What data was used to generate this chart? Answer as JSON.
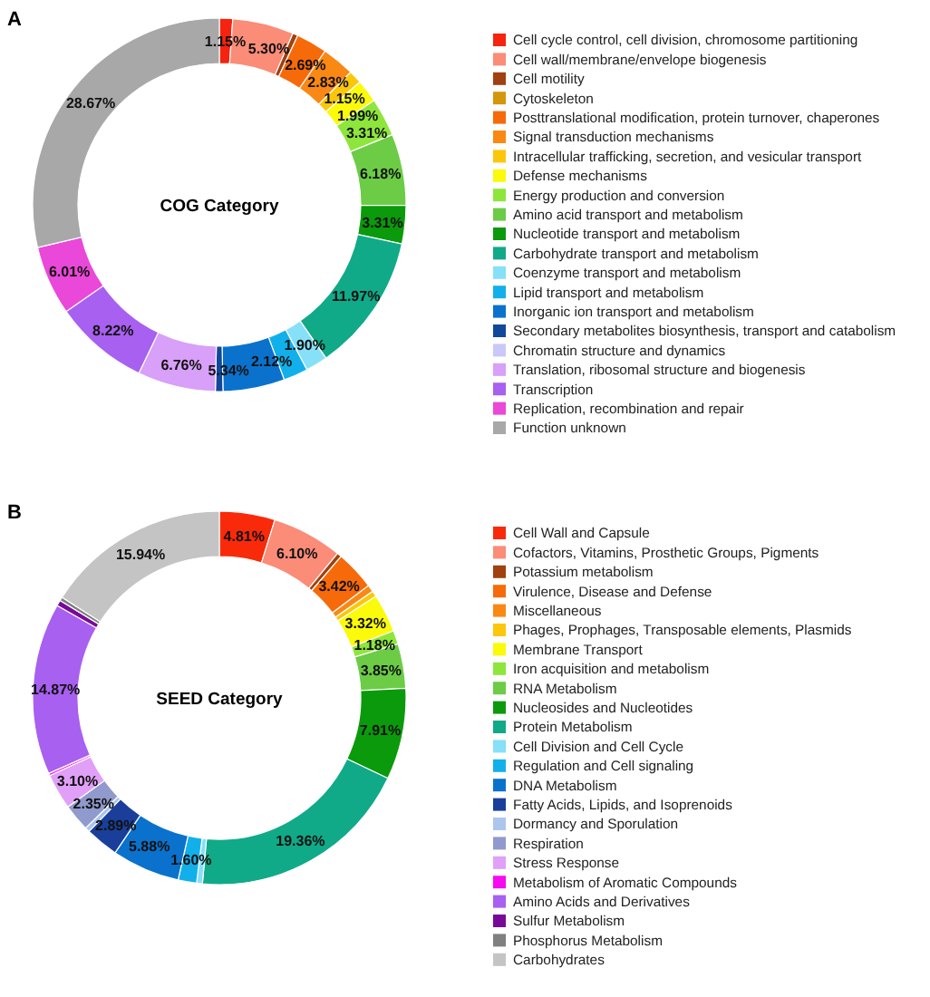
{
  "chart_data": [
    {
      "type": "donut",
      "title": "COG Category",
      "annotations": [
        "A"
      ],
      "legend": "right",
      "categories": [
        "Cell cycle control, cell division, chromosome partitioning",
        "Cell wall/membrane/envelope  biogenesis",
        "Cell motility",
        "Cytoskeleton",
        "Posttranslational modification, protein turnover, chaperones",
        "Signal transduction mechanisms",
        "Intracellular  trafficking, secretion, and vesicular transport",
        "Defense mechanisms",
        "Energy production and conversion",
        "Amino acid transport and metabolism",
        "Nucleotide transport and metabolism",
        "Carbohydrate transport and metabolism",
        "Coenzyme transport and metabolism",
        "Lipid transport and metabolism",
        "Inorganic ion transport and metabolism",
        "Secondary metabolites biosynthesis, transport and catabolism",
        "Chromatin structure and dynamics",
        "Translation, ribosomal structure and biogenesis",
        "Transcription",
        "Replication, recombination and repair",
        "Function unknown"
      ],
      "values": [
        1.15,
        5.3,
        0.45,
        null,
        2.69,
        2.83,
        1.15,
        1.99,
        3.31,
        6.18,
        3.31,
        11.97,
        1.9,
        2.12,
        5.34,
        0.65,
        null,
        6.76,
        8.22,
        6.01,
        28.67
      ],
      "value_labels": [
        "1.15%",
        "5.30%",
        null,
        null,
        "2.69%",
        "2.83%",
        "1.15%",
        "1.99%",
        "3.31%",
        "6.18%",
        "3.31%",
        "11.97%",
        "1.90%",
        "2.12%",
        "5.34%",
        null,
        null,
        "6.76%",
        "8.22%",
        "6.01%",
        "28.67%"
      ],
      "colors": [
        "#f5230f",
        "#fa8c78",
        "#a0410f",
        "#d4960a",
        "#f76a0a",
        "#fa8814",
        "#fcc60a",
        "#fafa0a",
        "#8ee63c",
        "#6ccc46",
        "#0b9a0b",
        "#10aa88",
        "#86e0f8",
        "#12b0ea",
        "#0a72cc",
        "#10489a",
        "#cac8f8",
        "#d8a0f8",
        "#a860f0",
        "#ea48d8",
        "#a8a8a8"
      ]
    },
    {
      "type": "donut",
      "title": "SEED Category",
      "annotations": [
        "B"
      ],
      "legend": "right",
      "categories": [
        "Cell Wall and Capsule",
        "Cofactors, Vitamins, Prosthetic Groups, Pigments",
        "Potassium metabolism",
        "Virulence, Disease and Defense",
        "Miscellaneous",
        "Phages, Prophages, Transposable elements, Plasmids",
        "Membrane Transport",
        "Iron acquisition and metabolism",
        "RNA Metabolism",
        "Nucleosides and Nucleotides",
        "Protein Metabolism",
        "Cell Division and Cell Cycle",
        "Regulation and Cell signaling",
        "DNA Metabolism",
        "Fatty Acids, Lipids, and Isoprenoids",
        "Dormancy and Sporulation",
        "Respiration",
        "Stress Response",
        "Metabolism of Aromatic Compounds",
        "Amino Acids and Derivatives",
        "Sulfur Metabolism",
        "Phosphorus Metabolism",
        "Carbohydrates"
      ],
      "values": [
        4.81,
        6.1,
        0.4,
        3.42,
        0.6,
        0.5,
        3.32,
        1.18,
        3.85,
        7.91,
        19.36,
        0.5,
        1.6,
        5.88,
        2.89,
        0.4,
        2.35,
        3.1,
        0.2,
        14.87,
        0.5,
        0.32,
        15.94
      ],
      "value_labels": [
        "4.81%",
        "6.10%",
        null,
        "3.42%",
        null,
        null,
        "3.32%",
        "1.18%",
        "3.85%",
        "7.91%",
        "19.36%",
        null,
        "1.60%",
        "5.88%",
        "2.89%",
        null,
        "2.35%",
        "3.10%",
        null,
        "14.87%",
        null,
        null,
        "15.94%"
      ],
      "colors": [
        "#f92a0a",
        "#fa8c78",
        "#a0410f",
        "#f76a0a",
        "#fa8814",
        "#fcc60a",
        "#fafa0a",
        "#8ee63c",
        "#6ccc46",
        "#0b9a0b",
        "#10aa88",
        "#86e0f8",
        "#12b0ea",
        "#0a72cc",
        "#1a3f9a",
        "#aac6ee",
        "#909acc",
        "#e0a0f8",
        "#f80af0",
        "#a860f0",
        "#780a9a",
        "#808080",
        "#c4c4c4"
      ]
    }
  ]
}
